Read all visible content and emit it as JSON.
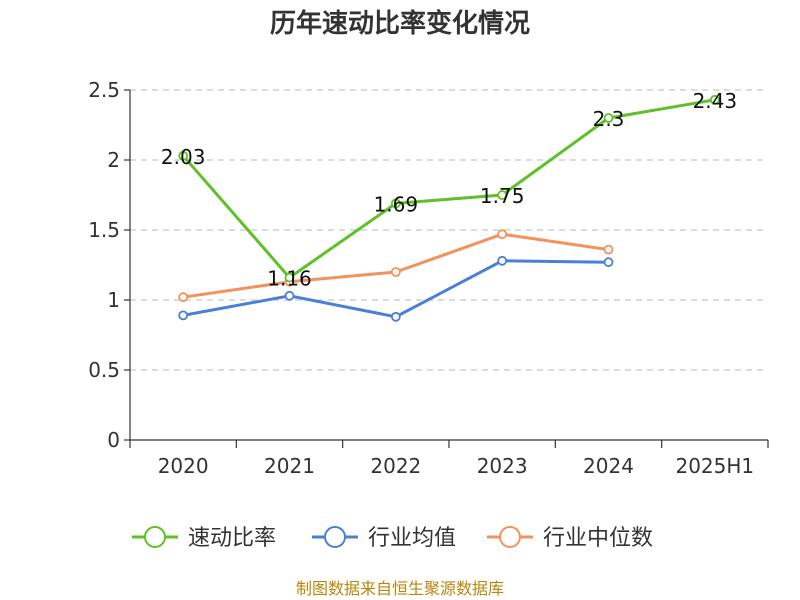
{
  "chart_data": {
    "type": "line",
    "title": "历年速动比率变化情况",
    "categories": [
      "2020",
      "2021",
      "2022",
      "2023",
      "2024",
      "2025H1"
    ],
    "yticks": [
      "0",
      "0.5",
      "1",
      "1.5",
      "2",
      "2.5"
    ],
    "ylim": [
      0,
      2.5
    ],
    "grid": true,
    "legend_position": "bottom",
    "series": [
      {
        "name": "速动比率",
        "color": "#5ec127",
        "values": [
          2.03,
          1.16,
          1.69,
          1.75,
          2.3,
          2.43
        ],
        "labels": [
          "2.03",
          "1.16",
          "1.69",
          "1.75",
          "2.3",
          "2.43"
        ]
      },
      {
        "name": "行业均值",
        "color": "#4a7fd8",
        "values": [
          0.89,
          1.03,
          0.88,
          1.28,
          1.27,
          null
        ]
      },
      {
        "name": "行业中位数",
        "color": "#f5915a",
        "values": [
          1.02,
          1.13,
          1.2,
          1.47,
          1.36,
          null
        ]
      }
    ],
    "source": "制图数据来自恒生聚源数据库"
  }
}
